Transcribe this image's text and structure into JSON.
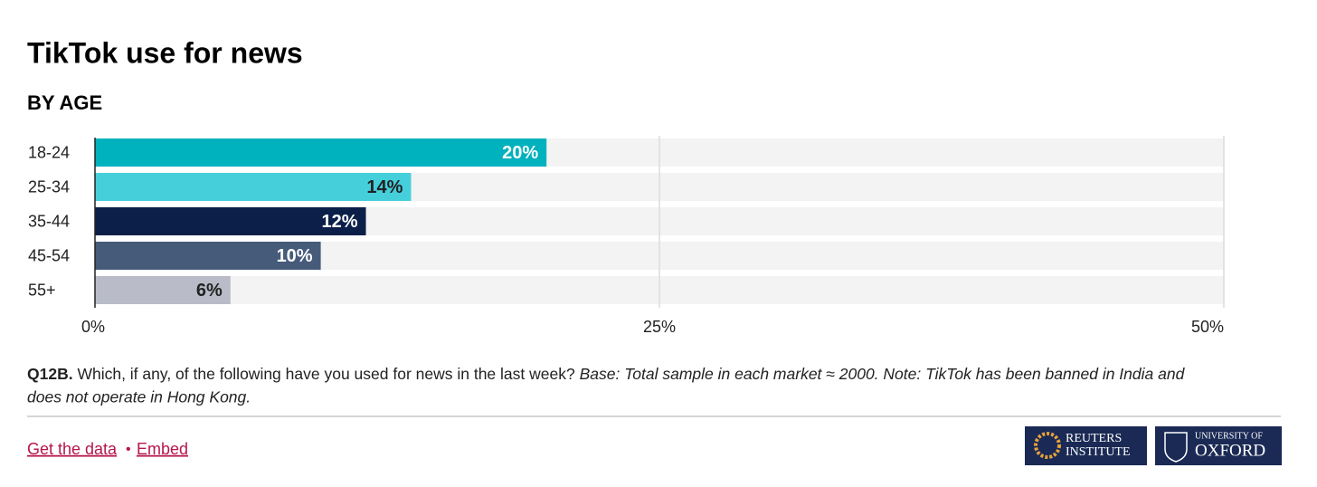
{
  "chart_data": {
    "type": "bar",
    "orientation": "horizontal",
    "title": "TikTok use for news",
    "subtitle": "BY AGE",
    "categories": [
      "18-24",
      "25-34",
      "35-44",
      "45-54",
      "55+"
    ],
    "values": [
      20,
      14,
      12,
      10,
      6
    ],
    "value_labels": [
      "20%",
      "14%",
      "12%",
      "10%",
      "6%"
    ],
    "colors": [
      "#00b1be",
      "#45cfdb",
      "#0c1f48",
      "#465a7a",
      "#b9bcc8"
    ],
    "xlim": [
      0,
      50
    ],
    "xticks": [
      {
        "value": 0,
        "label": "0%"
      },
      {
        "value": 25,
        "label": "25%"
      },
      {
        "value": 50,
        "label": "50%"
      }
    ],
    "grid": true
  },
  "note": {
    "code": "Q12B.",
    "question": "Which, if any, of the following have you used for news in the last week?",
    "base": "Base: Total sample in each market ≈ 2000. Note: TikTok has been banned in India and does not operate in Hong Kong."
  },
  "footer": {
    "links": [
      "Get the data",
      "Embed"
    ],
    "separator": "•",
    "logos": [
      {
        "lines": [
          "REUTERS",
          "INSTITUTE"
        ]
      },
      {
        "lines": [
          "UNIVERSITY OF",
          "OXFORD"
        ]
      }
    ]
  }
}
